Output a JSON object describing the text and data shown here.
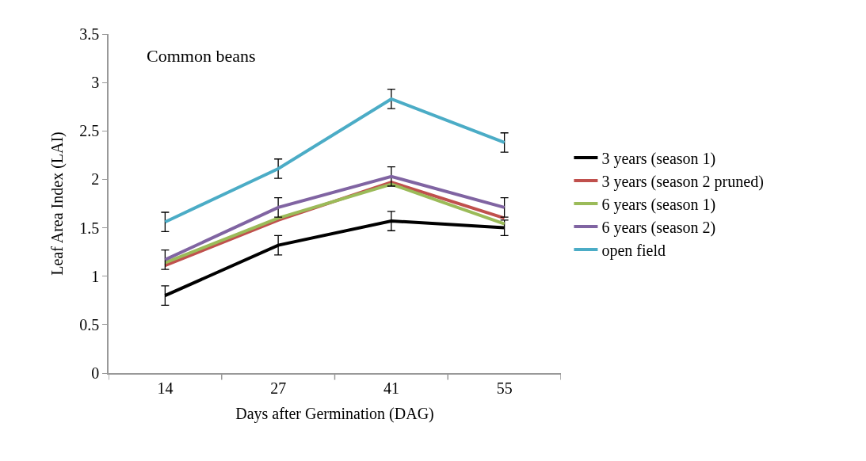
{
  "chart_data": {
    "type": "line",
    "title": "Common beans",
    "xlabel": "Days after Germination (DAG)",
    "ylabel": "Leaf Area Index (LAI)",
    "categories": [
      "14",
      "27",
      "41",
      "55"
    ],
    "series": [
      {
        "name": "3 years (season 1)",
        "color": "#000000",
        "values": [
          0.8,
          1.32,
          1.57,
          1.5
        ],
        "errors": [
          0.1,
          0.1,
          0.1,
          0.08
        ]
      },
      {
        "name": "3 years (season 2 pruned)",
        "color": "#c0504d",
        "values": [
          1.11,
          1.58,
          1.97,
          1.6
        ]
      },
      {
        "name": "6 years (season 1)",
        "color": "#9bbb59",
        "values": [
          1.14,
          1.6,
          1.95,
          1.54
        ]
      },
      {
        "name": "6 years (season 2)",
        "color": "#8064a2",
        "values": [
          1.17,
          1.71,
          2.03,
          1.71
        ],
        "errors": [
          0.1,
          0.1,
          0.1,
          0.1
        ]
      },
      {
        "name": "open field",
        "color": "#4bacc6",
        "values": [
          1.56,
          2.11,
          2.83,
          2.38
        ],
        "errors": [
          0.1,
          0.1,
          0.1,
          0.1
        ]
      }
    ],
    "ylim": [
      0,
      3.5
    ],
    "yticks": [
      0,
      0.5,
      1,
      1.5,
      2,
      2.5,
      3,
      3.5
    ],
    "legend": "right",
    "marker": "none",
    "line_style": "solid"
  }
}
